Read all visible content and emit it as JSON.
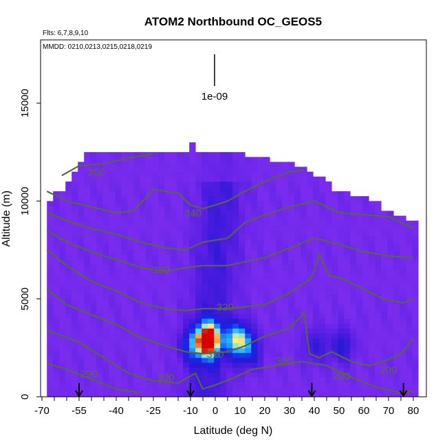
{
  "chart_data": {
    "type": "heatmap",
    "title": "ATOM2 Northbound OC_GEOS5",
    "notes": [
      "Flts: 6,7,8,9,10",
      "MMDD: 0210,0213,0215,0218,0219"
    ],
    "xlabel": "Latitude (deg N)",
    "ylabel": "Altitude (m)",
    "xlim": [
      -70,
      80
    ],
    "ylim": [
      0,
      15000
    ],
    "x_tick_labels": [
      "-70",
      "-55",
      "-40",
      "-25",
      "-10",
      "0",
      "10",
      "20",
      "30",
      "40",
      "50",
      "60",
      "70",
      "80"
    ],
    "y_tick_labels": [
      "0",
      "5000",
      "10000",
      "15000"
    ],
    "scale_marker_label": "1e-09",
    "contour_levels": [
      "290",
      "300",
      "310",
      "320",
      "330",
      "340",
      "350"
    ],
    "profile_latitudes": [
      -55,
      -10,
      39,
      76
    ],
    "hotspots": [
      {
        "lat": -4,
        "alt": 2800,
        "intensity": 1.0
      },
      {
        "lat": 8,
        "alt": 2800,
        "intensity": 0.7
      },
      {
        "lat": -11,
        "alt": 2500,
        "intensity": 0.35
      },
      {
        "lat": 13,
        "alt": 2200,
        "intensity": 0.3
      },
      {
        "lat": 39,
        "alt": 2500,
        "intensity": 0.25
      },
      {
        "lat": 50,
        "alt": 2500,
        "intensity": 0.3
      }
    ],
    "colors": {
      "background_field": "#7b2ff0",
      "dark": "#2a1ad8",
      "hot": "#d40000"
    }
  }
}
